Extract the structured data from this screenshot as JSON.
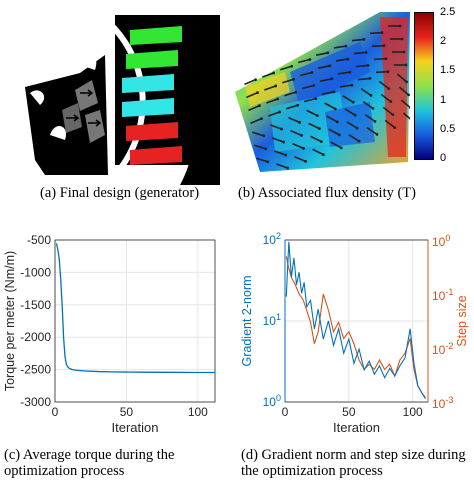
{
  "captions": {
    "a": "(a) Final design (generator)",
    "b": "(b) Associated flux density (T)",
    "c_line1": "(c) Average torque during the",
    "c_line2": "optimization process",
    "d_line1": "(d) Gradient norm and step size during",
    "d_line2": "the optimization process"
  },
  "colorbar": {
    "ticks": [
      "2.5",
      "2",
      "1.5",
      "1",
      "0.5",
      "0"
    ],
    "colors": [
      "#8c0000",
      "#e8251c",
      "#f7d01e",
      "#8fe04a",
      "#1fc4dc",
      "#1a5de0",
      "#00007f"
    ]
  },
  "design": {
    "slot_colors": [
      "#33e633",
      "#33e633",
      "#33e6e6",
      "#33e6e6",
      "#e62222",
      "#e62222"
    ]
  },
  "chart_data": [
    {
      "type": "line",
      "panel": "c",
      "xlabel": "Iteration",
      "ylabel": "Torque per meter (Nm/m)",
      "xlim": [
        0,
        112
      ],
      "ylim": [
        -3000,
        -500
      ],
      "xticks": [
        "0",
        "50",
        "100"
      ],
      "yticks": [
        "-500",
        "-1000",
        "-1500",
        "-2000",
        "-2500",
        "-3000"
      ],
      "grid": true,
      "color": "#0072bd",
      "x": [
        1,
        2,
        3,
        4,
        5,
        6,
        7,
        8,
        9,
        10,
        12,
        15,
        20,
        30,
        40,
        60,
        80,
        100,
        112
      ],
      "y": [
        -550,
        -650,
        -800,
        -1100,
        -1500,
        -2000,
        -2300,
        -2420,
        -2460,
        -2480,
        -2500,
        -2510,
        -2520,
        -2530,
        -2535,
        -2540,
        -2542,
        -2545,
        -2545
      ]
    },
    {
      "type": "line",
      "panel": "d",
      "xlabel": "Iteration",
      "ylabel_left": "Gradient 2-norm",
      "ylabel_right": "Step size",
      "xlim": [
        0,
        112
      ],
      "xticks": [
        "0",
        "50",
        "100"
      ],
      "yticks_left": [
        "10^0",
        "10^1",
        "10^2"
      ],
      "yticks_right": [
        "10^-3",
        "10^-2",
        "10^-1",
        "10^0"
      ],
      "log_scale": true,
      "grid": true,
      "series": [
        {
          "axis": "left",
          "color": "#0072bd",
          "x": [
            1,
            3,
            5,
            7,
            9,
            11,
            13,
            15,
            17,
            20,
            23,
            26,
            30,
            34,
            38,
            42,
            46,
            50,
            54,
            58,
            62,
            66,
            70,
            74,
            78,
            82,
            86,
            90,
            94,
            98,
            101,
            104,
            107,
            110
          ],
          "y": [
            20,
            95,
            35,
            60,
            28,
            40,
            22,
            30,
            15,
            18,
            8,
            14,
            6,
            10,
            5,
            8,
            4,
            6,
            3,
            4.5,
            2.5,
            3.2,
            2.2,
            2.8,
            2,
            2.6,
            2.1,
            2.8,
            3.5,
            8,
            3,
            1.6,
            1.3,
            1.1
          ]
        },
        {
          "axis": "right",
          "color": "#d95319",
          "x": [
            1,
            3,
            5,
            8,
            11,
            14,
            17,
            20,
            23,
            26,
            30,
            34,
            38,
            42,
            46,
            50,
            54,
            58,
            62,
            66,
            70,
            74,
            78,
            82,
            86,
            90,
            94,
            98,
            101,
            104,
            107,
            110
          ],
          "y": [
            0.5,
            0.3,
            0.2,
            0.15,
            0.1,
            0.08,
            0.05,
            0.03,
            0.012,
            0.02,
            0.1,
            0.05,
            0.02,
            0.03,
            0.015,
            0.02,
            0.012,
            0.006,
            0.004,
            0.005,
            0.004,
            0.006,
            0.004,
            0.005,
            0.003,
            0.006,
            0.008,
            0.015,
            0.004,
            0.002,
            0.0015,
            0.0012
          ]
        }
      ]
    }
  ]
}
